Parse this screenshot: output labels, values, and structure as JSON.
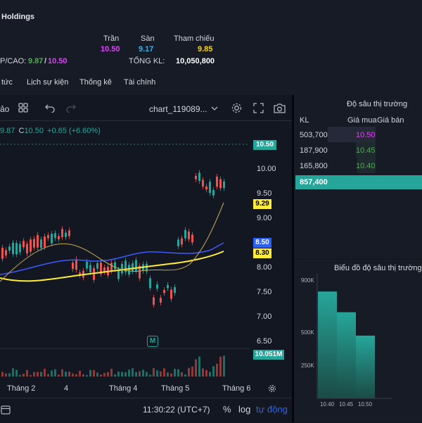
{
  "header": {
    "title": "Holdings",
    "col_tran": "Trần",
    "col_san": "Sàn",
    "col_thamchieu": "Tham chiếu",
    "tran": "10.50",
    "san": "9.17",
    "thamchieu": "9.85",
    "thap_cao_label": "P/CAO:",
    "thap": "9.87",
    "slash": "/",
    "cao": "10.50",
    "tongkl_label": "TỔNG KL:",
    "tongkl": "10,050,800",
    "colors": {
      "tran": "#e040fb",
      "san": "#29b6f6",
      "thamchieu": "#ffd600",
      "thap": "#4caf50",
      "cao": "#e040fb"
    }
  },
  "tabs": [
    "tức",
    "Lịch sự kiện",
    "Thống kê",
    "Tài chính"
  ],
  "toolbar": {
    "left_label": "ảo",
    "chart_name": "chart_119089...",
    "icons": [
      "grid-icon",
      "undo-icon",
      "redo-icon",
      "chevron-down-icon",
      "settings-icon",
      "fullscreen-icon",
      "camera-icon"
    ]
  },
  "legend": {
    "open_tail": "9.87",
    "close_prefix": "C",
    "close": "10.50",
    "change": "+0.65 (+6.60%)"
  },
  "price_axis": {
    "ticks": [
      "10.00",
      "9.50",
      "9.00",
      "8.00",
      "7.50",
      "7.00",
      "6.50"
    ],
    "tags": [
      {
        "label": "10.50",
        "bg": "#26a69a",
        "fg": "#ffffff"
      },
      {
        "label": "9.29",
        "bg": "#ffeb3b",
        "fg": "#000000"
      },
      {
        "label": "8.50",
        "bg": "#2962ff",
        "fg": "#ffffff"
      },
      {
        "label": "8.30",
        "bg": "#ffeb3b",
        "fg": "#000000"
      },
      {
        "label": "10.051M",
        "bg": "#26a69a",
        "fg": "#ffffff"
      }
    ]
  },
  "time_axis": [
    "Tháng 2",
    "4",
    "Tháng 4",
    "Tháng 5",
    "Tháng 6"
  ],
  "marker": "M",
  "footer": {
    "time": "11:30:22 (UTC+7)",
    "percent": "%",
    "log": "log",
    "auto": "tự động"
  },
  "depth": {
    "title": "Độ sâu thị trường",
    "col_kl": "KL",
    "col_buy": "Giá mua",
    "col_sell": "Giá bán",
    "rows": [
      {
        "kl": "503,700",
        "price": "10.50",
        "color": "#e040fb"
      },
      {
        "kl": "187,900",
        "price": "10.45",
        "color": "#4caf50"
      },
      {
        "kl": "165,800",
        "price": "10.40",
        "color": "#4caf50"
      }
    ],
    "total": "857,400"
  },
  "depth_chart": {
    "title": "Biểu đồ độ sâu thị trường",
    "y_ticks": [
      "900K",
      "500K",
      "250K"
    ],
    "chart_data": {
      "type": "bar",
      "categories": [
        "10.40",
        "10.45",
        "10.50"
      ],
      "values": [
        857400,
        691600,
        503700
      ],
      "ylim": [
        0,
        1000000
      ]
    }
  }
}
